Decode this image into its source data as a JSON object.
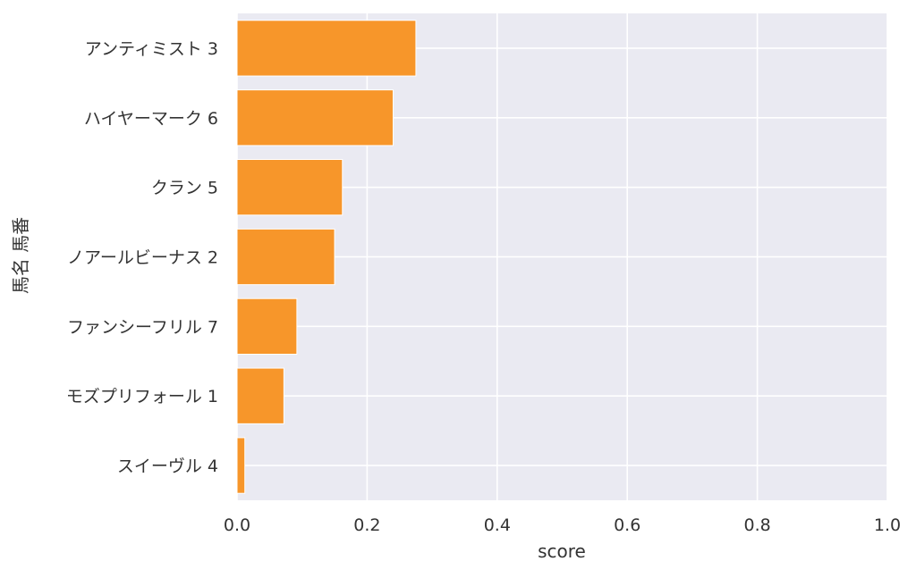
{
  "chart_data": {
    "type": "bar",
    "orientation": "horizontal",
    "categories": [
      "アンティミスト 3",
      "ハイヤーマーク 6",
      "クラン 5",
      "ノアールビーナス 2",
      "ファンシーフリル 7",
      "モズプリフォール 1",
      "スイーヴル 4"
    ],
    "values": [
      0.275,
      0.24,
      0.162,
      0.15,
      0.092,
      0.072,
      0.012
    ],
    "xlabel": "score",
    "ylabel": "馬名 馬番",
    "xlim": [
      0.0,
      1.0
    ],
    "xticks": [
      "0.0",
      "0.2",
      "0.4",
      "0.6",
      "0.8",
      "1.0"
    ],
    "grid": true,
    "colors": {
      "bar": "#f7962a",
      "plot_background": "#eaeaf2",
      "grid": "#ffffff"
    }
  }
}
